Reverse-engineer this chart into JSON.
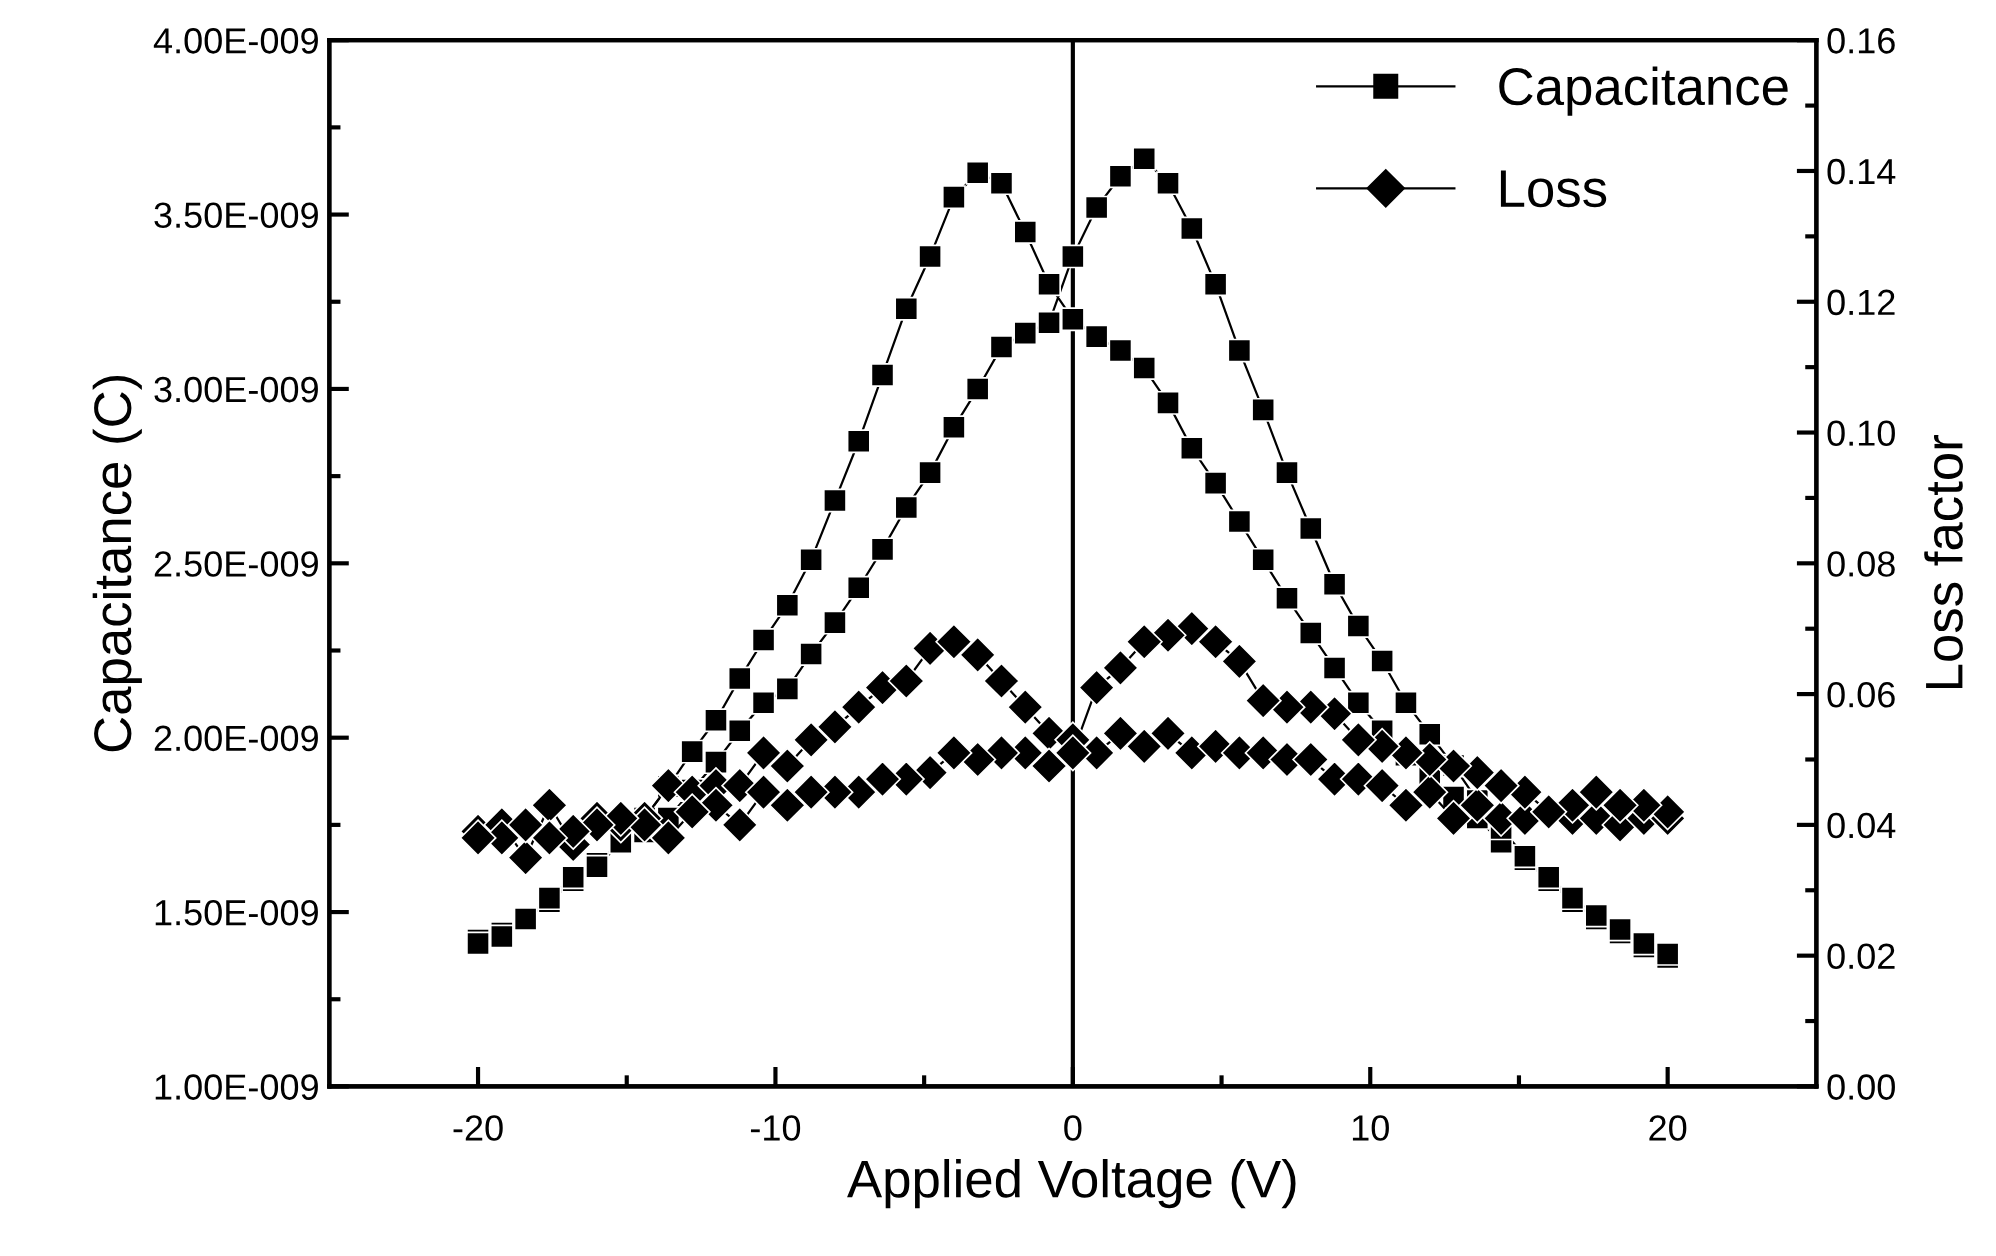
{
  "chart_data": {
    "type": "line",
    "xlabel": "Applied Voltage (V)",
    "ylabel": "Capacitance (C)",
    "y2label": "Loss factor",
    "xlim": [
      -25,
      25
    ],
    "xticks": [
      -20,
      -10,
      0,
      10,
      20
    ],
    "ylim": [
      1e-09,
      4e-09
    ],
    "yticks": [
      {
        "value": 1e-09,
        "label": "1.00E-009"
      },
      {
        "value": 1.5e-09,
        "label": "1.50E-009"
      },
      {
        "value": 2e-09,
        "label": "2.00E-009"
      },
      {
        "value": 2.5e-09,
        "label": "2.50E-009"
      },
      {
        "value": 3e-09,
        "label": "3.00E-009"
      },
      {
        "value": 3.5e-09,
        "label": "3.50E-009"
      },
      {
        "value": 4e-09,
        "label": "4.00E-009"
      }
    ],
    "y2lim": [
      0,
      0.16
    ],
    "y2ticks": [
      {
        "value": 0,
        "label": "0.00"
      },
      {
        "value": 0.02,
        "label": "0.02"
      },
      {
        "value": 0.04,
        "label": "0.04"
      },
      {
        "value": 0.06,
        "label": "0.06"
      },
      {
        "value": 0.08,
        "label": "0.08"
      },
      {
        "value": 0.1,
        "label": "0.10"
      },
      {
        "value": 0.12,
        "label": "0.12"
      },
      {
        "value": 0.14,
        "label": "0.14"
      },
      {
        "value": 0.16,
        "label": "0.16"
      }
    ],
    "grid": false,
    "legend": "top right",
    "line_style": "solid",
    "ref_lines": [
      {
        "axis": "x",
        "value": 0,
        "color": "#000000"
      }
    ],
    "series": [
      {
        "name": "Capacitance",
        "color": "#000000",
        "marker": "square",
        "x": [
          -20,
          -19.2,
          -18.4,
          -17.6,
          -16.8,
          -16,
          -15.2,
          -14.4,
          -13.6,
          -12.8,
          -12,
          -11.2,
          -10.4,
          -9.6,
          -8.8,
          -8,
          -7.2,
          -6.4,
          -5.6,
          -4.8,
          -4,
          -3.2,
          -2.4,
          -1.6,
          -0.8,
          0,
          0.8,
          1.6,
          2.4,
          3.2,
          4,
          4.8,
          5.6,
          6.4,
          7.2,
          8,
          8.8,
          9.6,
          10.4,
          11.2,
          12,
          12.8,
          13.6,
          14.4,
          15.2,
          16,
          16.8,
          17.6,
          18.4,
          19.2,
          20,
          20,
          19.2,
          18.4,
          17.6,
          16.8,
          16,
          15.2,
          14.4,
          13.6,
          12.8,
          12,
          11.2,
          10.4,
          9.6,
          8.8,
          8,
          7.2,
          6.4,
          5.6,
          4.8,
          4,
          3.2,
          2.4,
          1.6,
          0.8,
          0,
          -0.8,
          -1.6,
          -2.4,
          -3.2,
          -4,
          -4.8,
          -5.6,
          -6.4,
          -7.2,
          -8,
          -8.8,
          -9.6,
          -10.4,
          -11.2,
          -12,
          -12.8,
          -13.6,
          -14.4,
          -15.2,
          -16,
          -16.8,
          -17.6,
          -18.4,
          -19.2,
          -20
        ],
        "values": [
          1.42e-09,
          1.44e-09,
          1.48e-09,
          1.53e-09,
          1.59e-09,
          1.64e-09,
          1.7e-09,
          1.77e-09,
          1.86e-09,
          1.96e-09,
          2.05e-09,
          2.17e-09,
          2.28e-09,
          2.38e-09,
          2.51e-09,
          2.68e-09,
          2.85e-09,
          3.04e-09,
          3.23e-09,
          3.38e-09,
          3.55e-09,
          3.62e-09,
          3.59e-09,
          3.45e-09,
          3.3e-09,
          3.2e-09,
          3.15e-09,
          3.11e-09,
          3.06e-09,
          2.96e-09,
          2.83e-09,
          2.73e-09,
          2.62e-09,
          2.51e-09,
          2.4e-09,
          2.3e-09,
          2.2e-09,
          2.1e-09,
          2.02e-09,
          1.95e-09,
          1.89e-09,
          1.83e-09,
          1.77e-09,
          1.7e-09,
          1.65e-09,
          1.59e-09,
          1.53e-09,
          1.48e-09,
          1.44e-09,
          1.4e-09,
          1.37e-09,
          1.38e-09,
          1.41e-09,
          1.45e-09,
          1.49e-09,
          1.54e-09,
          1.6e-09,
          1.66e-09,
          1.74e-09,
          1.82e-09,
          1.92e-09,
          2.01e-09,
          2.1e-09,
          2.22e-09,
          2.32e-09,
          2.44e-09,
          2.6e-09,
          2.76e-09,
          2.94e-09,
          3.11e-09,
          3.3e-09,
          3.46e-09,
          3.59e-09,
          3.66e-09,
          3.61e-09,
          3.52e-09,
          3.38e-09,
          3.19e-09,
          3.16e-09,
          3.12e-09,
          3e-09,
          2.89e-09,
          2.76e-09,
          2.66e-09,
          2.54e-09,
          2.43e-09,
          2.33e-09,
          2.24e-09,
          2.14e-09,
          2.1e-09,
          2.02e-09,
          1.93e-09,
          1.85e-09,
          1.77e-09,
          1.73e-09,
          1.7e-09,
          1.63e-09,
          1.6e-09,
          1.54e-09,
          1.48e-09,
          1.43e-09,
          1.41e-09
        ]
      },
      {
        "name": "Loss",
        "color": "#000000",
        "marker": "diamond",
        "axis": "y2",
        "x": [
          -20,
          -19.2,
          -18.4,
          -17.6,
          -16.8,
          -16,
          -15.2,
          -14.4,
          -13.6,
          -12.8,
          -12,
          -11.2,
          -10.4,
          -9.6,
          -8.8,
          -8,
          -7.2,
          -6.4,
          -5.6,
          -4.8,
          -4,
          -3.2,
          -2.4,
          -1.6,
          -0.8,
          0,
          0.8,
          1.6,
          2.4,
          3.2,
          4,
          4.8,
          5.6,
          6.4,
          7.2,
          8,
          8.8,
          9.6,
          10.4,
          11.2,
          12,
          12.8,
          13.6,
          14.4,
          15.2,
          16,
          16.8,
          17.6,
          18.4,
          19.2,
          20,
          20,
          19.2,
          18.4,
          17.6,
          16.8,
          16,
          15.2,
          14.4,
          13.6,
          12.8,
          12,
          11.2,
          10.4,
          9.6,
          8.8,
          8,
          7.2,
          6.4,
          5.6,
          4.8,
          4,
          3.2,
          2.4,
          1.6,
          0.8,
          0,
          -0.8,
          -1.6,
          -2.4,
          -3.2,
          -4,
          -4.8,
          -5.6,
          -6.4,
          -7.2,
          -8,
          -8.8,
          -9.6,
          -10.4,
          -11.2,
          -12,
          -12.8,
          -13.6,
          -14.4,
          -15.2,
          -16,
          -16.8,
          -17.6,
          -18.4,
          -19.2,
          -20
        ],
        "values": [
          0.039,
          0.04,
          0.035,
          0.043,
          0.037,
          0.041,
          0.04,
          0.041,
          0.046,
          0.045,
          0.046,
          0.046,
          0.051,
          0.049,
          0.053,
          0.055,
          0.058,
          0.061,
          0.062,
          0.067,
          0.068,
          0.066,
          0.062,
          0.058,
          0.054,
          0.053,
          0.051,
          0.054,
          0.052,
          0.054,
          0.051,
          0.052,
          0.051,
          0.051,
          0.05,
          0.05,
          0.047,
          0.047,
          0.046,
          0.043,
          0.045,
          0.041,
          0.043,
          0.041,
          0.041,
          0.042,
          0.041,
          0.041,
          0.04,
          0.041,
          0.041,
          0.042,
          0.043,
          0.043,
          0.045,
          0.043,
          0.042,
          0.045,
          0.046,
          0.048,
          0.049,
          0.05,
          0.051,
          0.052,
          0.053,
          0.057,
          0.058,
          0.058,
          0.059,
          0.065,
          0.068,
          0.07,
          0.069,
          0.068,
          0.064,
          0.061,
          0.051,
          0.049,
          0.051,
          0.051,
          0.05,
          0.051,
          0.048,
          0.047,
          0.047,
          0.045,
          0.045,
          0.045,
          0.043,
          0.045,
          0.04,
          0.043,
          0.042,
          0.038,
          0.04,
          0.041,
          0.04,
          0.039,
          0.038,
          0.04,
          0.038,
          0.038
        ]
      }
    ]
  }
}
